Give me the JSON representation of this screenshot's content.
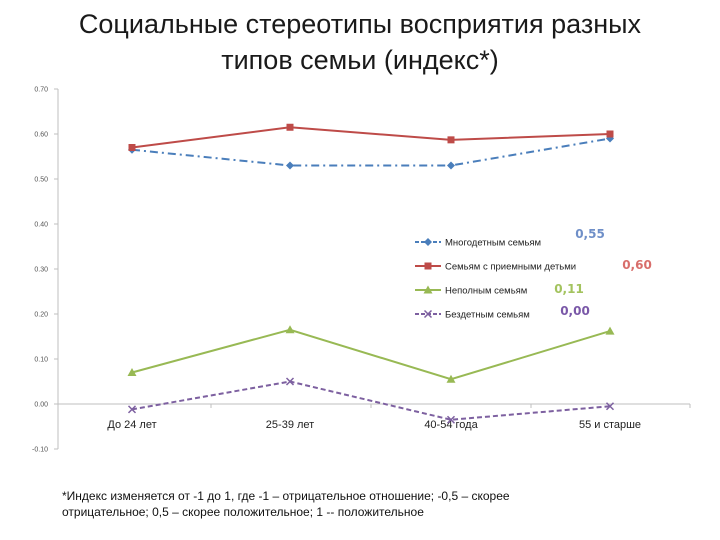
{
  "slide": {
    "title_line1": "Социальные стереотипы восприятия разных",
    "title_line2": "типов семьи (индекс*)",
    "footnote_line1": "*Индекс изменяется от -1 до 1, где -1 – отрицательное отношение; -0,5 – скорее",
    "footnote_line2": "отрицательное; 0,5 – скорее положительное; 1 -- положительное"
  },
  "chart_data": {
    "type": "line",
    "categories": [
      "До 24 лет",
      "25-39 лет",
      "40-54 года",
      "55 и старше"
    ],
    "ylim": [
      -0.1,
      0.7
    ],
    "yticks": [
      0.7,
      0.6,
      0.5,
      0.4,
      0.3,
      0.2,
      0.1,
      0.0,
      -0.1
    ],
    "ytick_labels": [
      "0.70",
      "0.60",
      "0.50",
      "0.40",
      "0.30",
      "0.20",
      "0.10",
      "0.00",
      "-0.10"
    ],
    "grid": false,
    "legend_position": "right",
    "series": [
      {
        "name": "Многодетным семьям",
        "values": [
          0.565,
          0.53,
          0.53,
          0.59
        ],
        "color": "#4a7ebb",
        "marker": "diamond",
        "dash": "dashdot",
        "badge": "0,55",
        "badge_color": "#6f8fc8"
      },
      {
        "name": "Семьям с приемными детьми",
        "values": [
          0.57,
          0.615,
          0.587,
          0.6
        ],
        "color": "#be4b48",
        "marker": "square",
        "dash": "solid",
        "badge": "0,60",
        "badge_color": "#d86e6b"
      },
      {
        "name": "Неполным семьям",
        "values": [
          0.07,
          0.165,
          0.055,
          0.162
        ],
        "color": "#98b954",
        "marker": "triangle",
        "dash": "solid",
        "badge": "0,11",
        "badge_color": "#a3c35e"
      },
      {
        "name": "Бездетным семьям",
        "values": [
          -0.012,
          0.05,
          -0.035,
          -0.005
        ],
        "color": "#7d60a0",
        "marker": "x",
        "dash": "dash",
        "badge": "0,00",
        "badge_color": "#7a58a8"
      }
    ]
  }
}
